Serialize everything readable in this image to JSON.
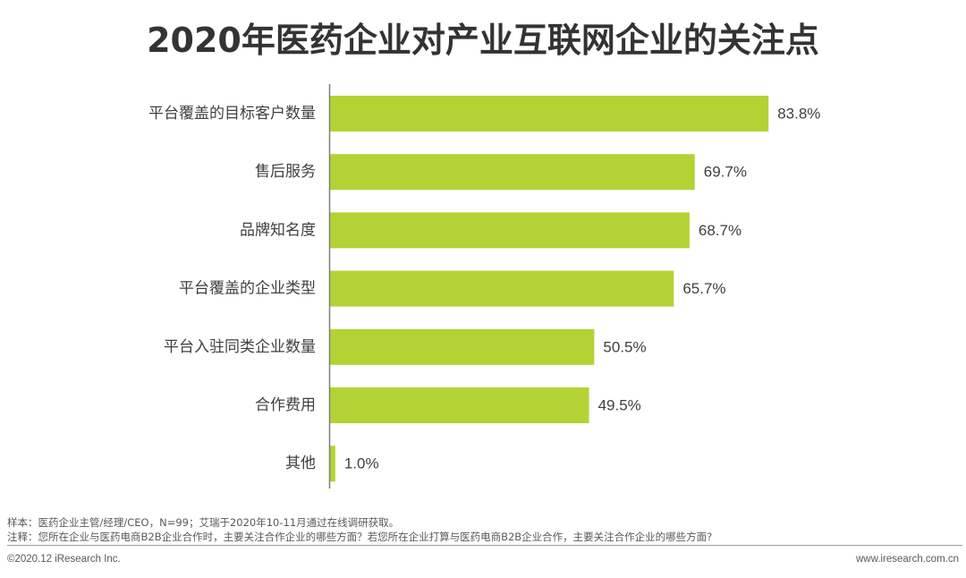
{
  "chart_data": {
    "type": "bar",
    "orientation": "horizontal",
    "title": "2020年医药企业对产业互联网企业的关注点",
    "categories": [
      "平台覆盖的目标客户数量",
      "售后服务",
      "品牌知名度",
      "平台覆盖的企业类型",
      "平台入驻同类企业数量",
      "合作费用",
      "其他"
    ],
    "values": [
      83.8,
      69.7,
      68.7,
      65.7,
      50.5,
      49.5,
      1.0
    ],
    "labels": [
      "83.8%",
      "69.7%",
      "68.7%",
      "65.7%",
      "50.5%",
      "49.5%",
      "1.0%"
    ],
    "unit": "%",
    "xlim": [
      0,
      100
    ],
    "xlabel": "",
    "ylabel": "",
    "bar_color": "#b3d334",
    "axis_color": "#7f7f7f"
  },
  "footnotes": {
    "sample": "样本：医药企业主管/经理/CEO，N=99；艾瑞于2020年10-11月通过在线调研获取。",
    "note": "注释：您所在企业与医药电商B2B企业合作时，主要关注合作企业的哪些方面？若您所在企业打算与医药电商B2B企业合作，主要关注合作企业的哪些方面?"
  },
  "footer": {
    "copyright": "©2020.12 iResearch Inc.",
    "website": "www.iresearch.com.cn"
  }
}
